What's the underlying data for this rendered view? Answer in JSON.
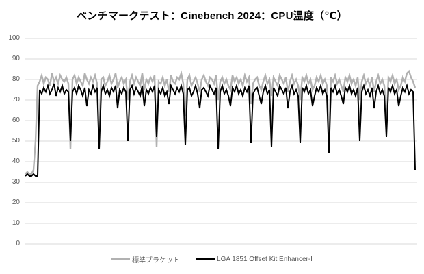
{
  "title": "ベンチマークテスト：Cinebench 2024：CPU温度（℃）",
  "colors": {
    "background": "#ffffff",
    "grid": "#d9d9d9",
    "axis_text": "#595959",
    "title_text": "#000000"
  },
  "chart_data": {
    "type": "line",
    "title": "ベンチマークテスト：Cinebench 2024：CPU温度（℃）",
    "xlabel": "",
    "ylabel": "",
    "ylim": [
      0,
      100
    ],
    "yticks": [
      0,
      10,
      20,
      30,
      40,
      50,
      60,
      70,
      80,
      90,
      100
    ],
    "grid": true,
    "x_axis_labels_shown": false,
    "legend_position": "bottom-center",
    "series": [
      {
        "name": "標準ブラケット",
        "color": "#b1b1b1",
        "stroke_width": 2.4,
        "values": [
          34,
          35,
          34,
          34,
          36,
          50,
          77,
          79,
          82,
          78,
          81,
          80,
          77,
          83,
          79,
          81,
          78,
          82,
          80,
          79,
          81,
          78,
          46,
          80,
          82,
          78,
          81,
          79,
          77,
          83,
          80,
          78,
          81,
          79,
          82,
          78,
          55,
          80,
          81,
          77,
          79,
          82,
          78,
          80,
          83,
          76,
          79,
          81,
          78,
          80,
          70,
          79,
          82,
          78,
          81,
          79,
          77,
          83,
          75,
          80,
          78,
          81,
          79,
          82,
          47,
          79,
          78,
          81,
          77,
          80,
          74,
          82,
          79,
          78,
          81,
          80,
          83,
          78,
          62,
          80,
          82,
          77,
          79,
          81,
          78,
          74,
          80,
          82,
          79,
          77,
          81,
          80,
          78,
          82,
          70,
          79,
          81,
          78,
          80,
          77,
          75,
          82,
          79,
          81,
          78,
          80,
          77,
          82,
          79,
          81,
          68,
          78,
          80,
          81,
          77,
          75,
          79,
          82,
          78,
          80,
          72,
          81,
          79,
          77,
          82,
          80,
          78,
          81,
          74,
          79,
          82,
          78,
          80,
          77,
          70,
          81,
          79,
          82,
          78,
          80,
          75,
          77,
          81,
          79,
          82,
          78,
          80,
          77,
          52,
          81,
          79,
          82,
          78,
          80,
          77,
          74,
          81,
          79,
          82,
          78,
          80,
          77,
          81,
          70,
          79,
          82,
          78,
          80,
          77,
          81,
          74,
          79,
          82,
          78,
          80,
          77,
          58,
          81,
          79,
          82,
          78,
          80,
          75,
          77,
          81,
          79,
          83,
          84,
          81,
          79,
          76
        ]
      },
      {
        "name": "LGA 1851 Offset Kit Enhancer-I",
        "color": "#000000",
        "stroke_width": 2,
        "values": [
          33,
          34,
          33,
          33,
          34,
          33,
          33,
          75,
          73,
          76,
          74,
          77,
          73,
          75,
          78,
          72,
          76,
          74,
          77,
          73,
          75,
          74,
          50,
          74,
          76,
          73,
          77,
          75,
          72,
          76,
          67,
          75,
          73,
          77,
          74,
          76,
          46,
          74,
          77,
          73,
          75,
          72,
          76,
          74,
          77,
          66,
          75,
          73,
          76,
          74,
          50,
          75,
          77,
          73,
          76,
          74,
          72,
          77,
          67,
          75,
          73,
          76,
          74,
          77,
          52,
          75,
          73,
          76,
          72,
          74,
          68,
          77,
          75,
          73,
          76,
          74,
          77,
          73,
          48,
          75,
          76,
          72,
          74,
          77,
          73,
          66,
          75,
          76,
          74,
          72,
          77,
          75,
          73,
          76,
          46,
          74,
          77,
          73,
          75,
          72,
          67,
          76,
          74,
          77,
          73,
          75,
          72,
          76,
          74,
          77,
          49,
          73,
          75,
          76,
          72,
          68,
          74,
          77,
          73,
          75,
          47,
          76,
          74,
          72,
          77,
          75,
          73,
          76,
          66,
          74,
          77,
          73,
          75,
          72,
          49,
          76,
          74,
          77,
          73,
          75,
          67,
          72,
          76,
          74,
          77,
          73,
          75,
          72,
          44,
          76,
          74,
          77,
          73,
          75,
          72,
          68,
          76,
          74,
          77,
          73,
          75,
          72,
          76,
          50,
          74,
          77,
          73,
          75,
          72,
          76,
          66,
          74,
          77,
          73,
          75,
          72,
          52,
          76,
          74,
          77,
          73,
          75,
          67,
          72,
          76,
          74,
          77,
          73,
          75,
          74,
          36
        ]
      }
    ]
  }
}
